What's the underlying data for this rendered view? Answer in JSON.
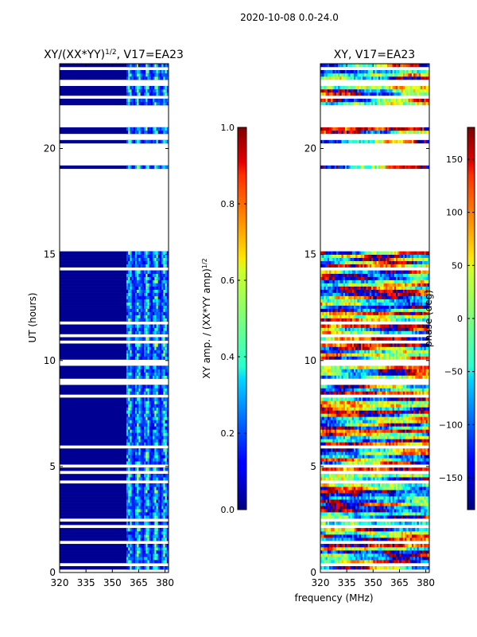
{
  "suptitle": "2020-10-08 0.0-24.0",
  "colors": {
    "masked": "#ffffff",
    "jet": [
      "#00007f",
      "#0000ff",
      "#007fff",
      "#00ffff",
      "#7fff7f",
      "#ffff00",
      "#ff7f00",
      "#ff0000",
      "#7f0000"
    ]
  },
  "chart_data": [
    {
      "type": "heatmap",
      "title_main": "XY/(XX*YY)",
      "title_sup": "1/2",
      "title_rest": ", V17=EA23",
      "title": "XY/(XX*YY)^1/2, V17=EA23",
      "xlabel": "",
      "ylabel": "UT (hours)",
      "xlim": [
        320,
        382
      ],
      "ylim": [
        0,
        24
      ],
      "xticks": [
        "320",
        "335",
        "350",
        "365",
        "380"
      ],
      "xtick_values": [
        320,
        335,
        350,
        365,
        380
      ],
      "yticks": [
        "0",
        "5",
        "10",
        "15",
        "20"
      ],
      "ytick_values": [
        0,
        5,
        10,
        15,
        20
      ],
      "masked_bands_hours": [
        [
          15.1,
          18.1
        ],
        [
          18.2,
          19.1
        ],
        [
          19.4,
          20.2
        ],
        [
          20.4,
          20.7
        ],
        [
          21.0,
          21.9
        ]
      ],
      "colorbar": {
        "label_main": "XY amp. / (XX*YY amp)",
        "label_sup": "1/2",
        "range": [
          0.0,
          1.0
        ],
        "ticks": [
          "0.0",
          "0.2",
          "0.4",
          "0.6",
          "0.8",
          "1.0"
        ],
        "tick_values": [
          0.0,
          0.2,
          0.4,
          0.6,
          0.8,
          1.0
        ]
      }
    },
    {
      "type": "heatmap",
      "title": "XY, V17=EA23",
      "xlabel": "frequency (MHz)",
      "ylabel": "",
      "xlim": [
        320,
        382
      ],
      "ylim": [
        0,
        24
      ],
      "xticks": [
        "320",
        "335",
        "350",
        "365",
        "380"
      ],
      "xtick_values": [
        320,
        335,
        350,
        365,
        380
      ],
      "yticks": [
        "0",
        "5",
        "10",
        "15",
        "20"
      ],
      "ytick_values": [
        0,
        5,
        10,
        15,
        20
      ],
      "masked_bands_hours": [
        [
          15.1,
          18.1
        ],
        [
          18.2,
          19.1
        ],
        [
          19.4,
          20.2
        ],
        [
          20.4,
          20.7
        ],
        [
          21.0,
          21.9
        ]
      ],
      "colorbar": {
        "label": "phase (deg)",
        "range": [
          -180,
          180
        ],
        "ticks": [
          "−150",
          "−100",
          "−50",
          "0",
          "50",
          "100",
          "150"
        ],
        "tick_values": [
          -150,
          -100,
          -50,
          0,
          50,
          100,
          150
        ]
      }
    }
  ]
}
